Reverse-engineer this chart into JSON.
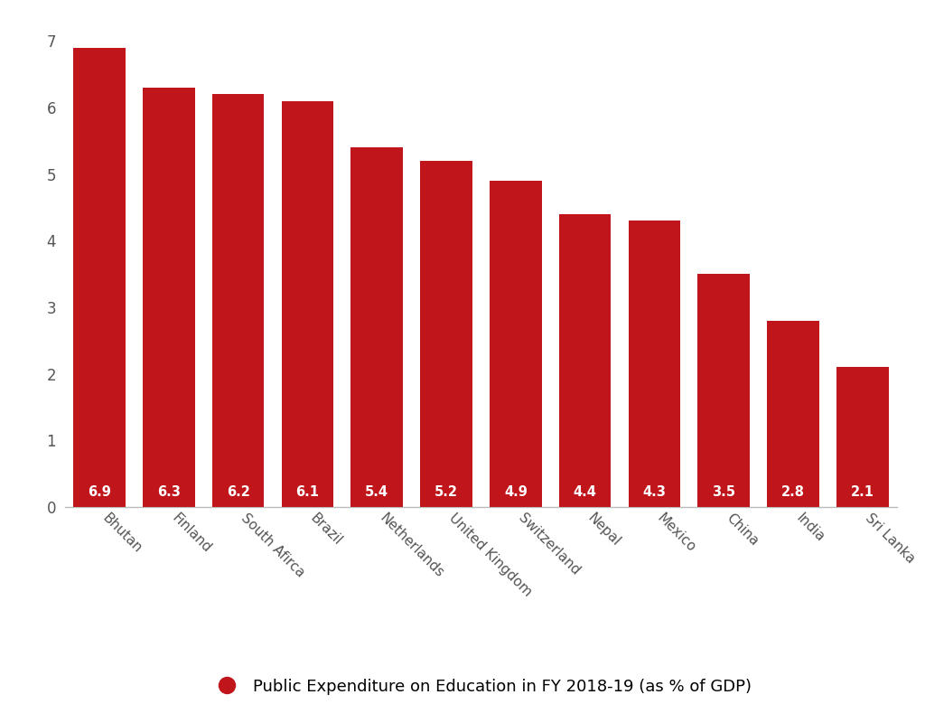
{
  "categories": [
    "Bhutan",
    "Finland",
    "South Afirca",
    "Brazil",
    "Netherlands",
    "United Kingdom",
    "Switzerland",
    "Nepal",
    "Mexico",
    "China",
    "India",
    "Sri Lanka"
  ],
  "values": [
    6.9,
    6.3,
    6.2,
    6.1,
    5.4,
    5.2,
    4.9,
    4.4,
    4.3,
    3.5,
    2.8,
    2.1
  ],
  "bar_color": "#C0151A",
  "label_color": "#ffffff",
  "background_color": "#ffffff",
  "ylabel_values": [
    0,
    1,
    2,
    3,
    4,
    5,
    6,
    7
  ],
  "ylim": [
    0,
    7.3
  ],
  "legend_label": "Public Expenditure on Education in FY 2018-19 (as % of GDP)",
  "legend_color": "#C0151A",
  "value_fontsize": 10.5,
  "tick_label_fontsize": 11,
  "ytick_fontsize": 12,
  "legend_fontsize": 13,
  "bar_width": 0.75
}
